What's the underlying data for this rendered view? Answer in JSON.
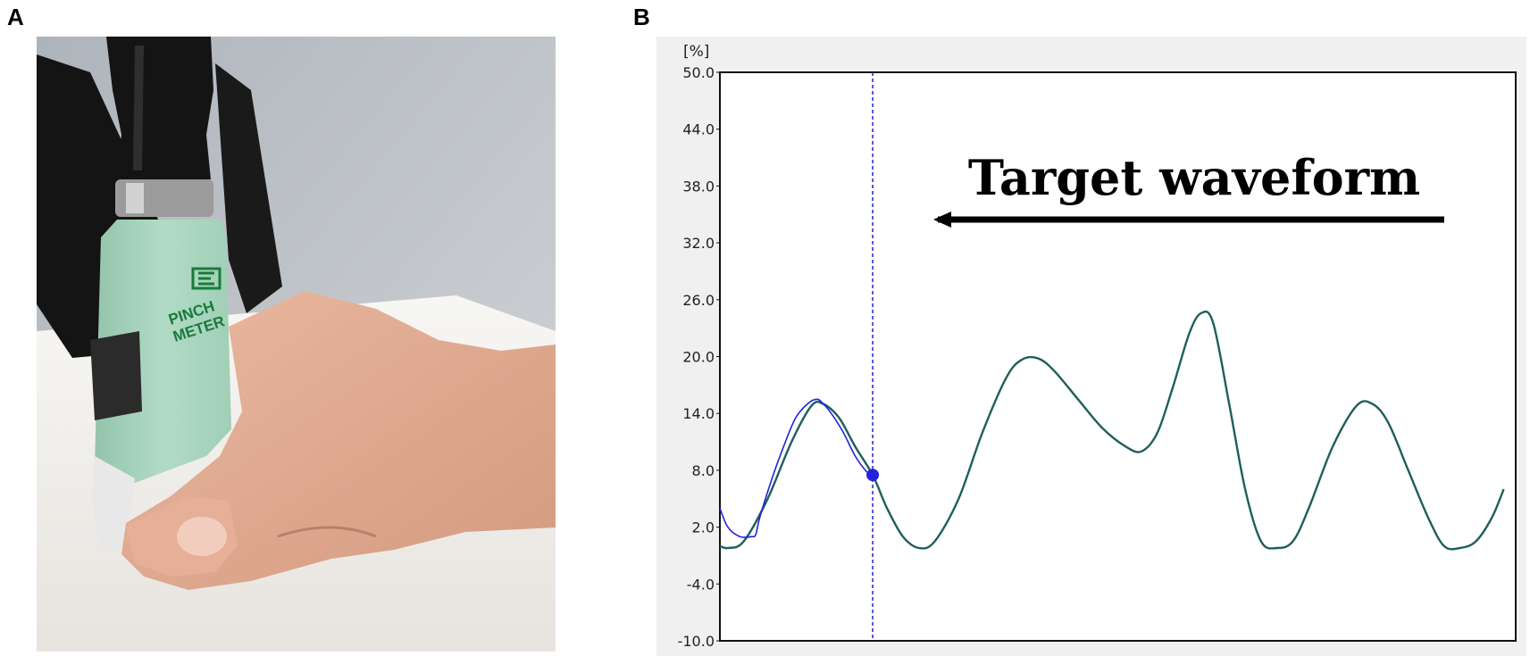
{
  "panels": {
    "a_letter": "A",
    "b_letter": "B"
  },
  "photo": {
    "device_label_line1": "PINCH",
    "device_label_line2": "METER",
    "colors": {
      "wall": "#c2c7cc",
      "table": "#f1efec",
      "device": "#a8d5bd",
      "handle": "#161616",
      "skin": "#e0ad93"
    }
  },
  "chart_data": {
    "type": "line",
    "unit_label": "[%]",
    "annotation": "Target waveform",
    "annotation_arrow": "left",
    "ylim": [
      -10,
      50
    ],
    "yticks": [
      "50.0",
      "44.0",
      "38.0",
      "32.0",
      "26.0",
      "20.0",
      "14.0",
      "8.0",
      "2.0",
      "-4.0",
      "-10.0"
    ],
    "xlim": [
      0,
      100
    ],
    "grid": false,
    "cursor_x": 19.2,
    "colors": {
      "target": "#1e5f5b",
      "response": "#2222dd",
      "cursor": "#2222cc",
      "background": "#f0f0f0",
      "plot_bg": "#ffffff"
    },
    "series": [
      {
        "role": "target",
        "points": [
          [
            0,
            0
          ],
          [
            1,
            -0.2
          ],
          [
            3,
            0.5
          ],
          [
            6,
            5
          ],
          [
            9,
            11
          ],
          [
            11.5,
            14.8
          ],
          [
            13,
            15
          ],
          [
            15,
            13.5
          ],
          [
            17,
            10.5
          ],
          [
            19.2,
            7.5
          ],
          [
            21,
            4
          ],
          [
            23,
            1
          ],
          [
            25,
            -0.2
          ],
          [
            27,
            0.5
          ],
          [
            30,
            5
          ],
          [
            33,
            12
          ],
          [
            36,
            17.8
          ],
          [
            38,
            19.7
          ],
          [
            40,
            19.8
          ],
          [
            42,
            18.5
          ],
          [
            45,
            15.5
          ],
          [
            48,
            12.5
          ],
          [
            51,
            10.5
          ],
          [
            53,
            10
          ],
          [
            55,
            12
          ],
          [
            57,
            17
          ],
          [
            59,
            22.5
          ],
          [
            60.5,
            24.6
          ],
          [
            62,
            23.5
          ],
          [
            64,
            15
          ],
          [
            66,
            6
          ],
          [
            68,
            0.5
          ],
          [
            70,
            -0.2
          ],
          [
            72,
            0.5
          ],
          [
            74,
            4
          ],
          [
            77,
            10.5
          ],
          [
            80,
            14.8
          ],
          [
            82,
            15
          ],
          [
            84,
            13
          ],
          [
            86.5,
            8
          ],
          [
            89,
            3
          ],
          [
            91,
            0
          ],
          [
            93,
            -0.2
          ],
          [
            95,
            0.5
          ],
          [
            97,
            3
          ],
          [
            98.5,
            6
          ]
        ]
      },
      {
        "role": "response",
        "points": [
          [
            0,
            4
          ],
          [
            1,
            2
          ],
          [
            2.5,
            1
          ],
          [
            4,
            1
          ],
          [
            4.5,
            1.2
          ],
          [
            5,
            3
          ],
          [
            6.5,
            7
          ],
          [
            8,
            10.5
          ],
          [
            9.5,
            13.5
          ],
          [
            11,
            15
          ],
          [
            12.2,
            15.5
          ],
          [
            13,
            15
          ],
          [
            14,
            14
          ],
          [
            15.5,
            12
          ],
          [
            17,
            9.5
          ],
          [
            18.5,
            7.8
          ],
          [
            19.2,
            7.5
          ]
        ]
      }
    ]
  }
}
